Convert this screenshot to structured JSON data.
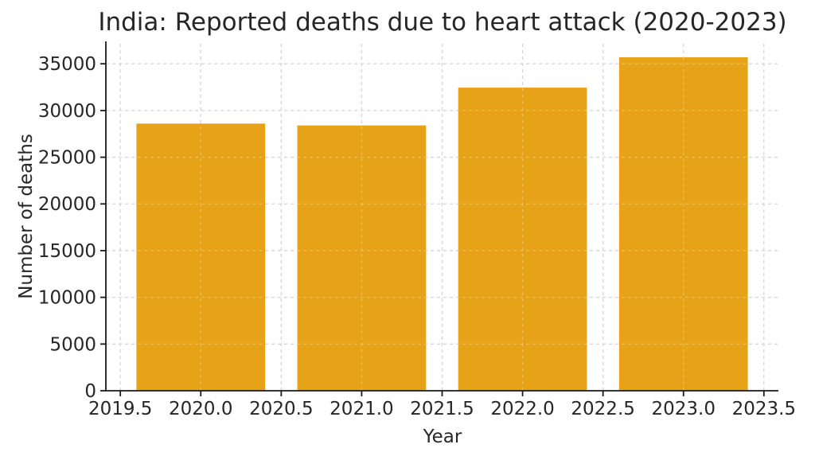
{
  "chart_data": {
    "type": "bar",
    "title": "India: Reported deaths due to heart attack (2020-2023)",
    "xlabel": "Year",
    "ylabel": "Number of deaths",
    "categories": [
      2020,
      2021,
      2022,
      2023
    ],
    "values": [
      28600,
      28400,
      32450,
      35700
    ],
    "bar_width": 0.8,
    "xlim": [
      2019.41,
      2023.59
    ],
    "ylim": [
      0,
      37400
    ],
    "xticks": [
      "2019.5",
      "2020.0",
      "2020.5",
      "2021.0",
      "2021.5",
      "2022.0",
      "2022.5",
      "2023.0",
      "2023.5"
    ],
    "yticks": [
      0,
      5000,
      10000,
      15000,
      20000,
      25000,
      30000,
      35000
    ],
    "grid": true,
    "grid_style": "dashed",
    "legend_position": "none"
  },
  "colors": {
    "bar": "#E7A318",
    "grid": "#c7c7c7",
    "axis": "#1a1a1a",
    "text": "#262626",
    "background": "#ffffff"
  }
}
